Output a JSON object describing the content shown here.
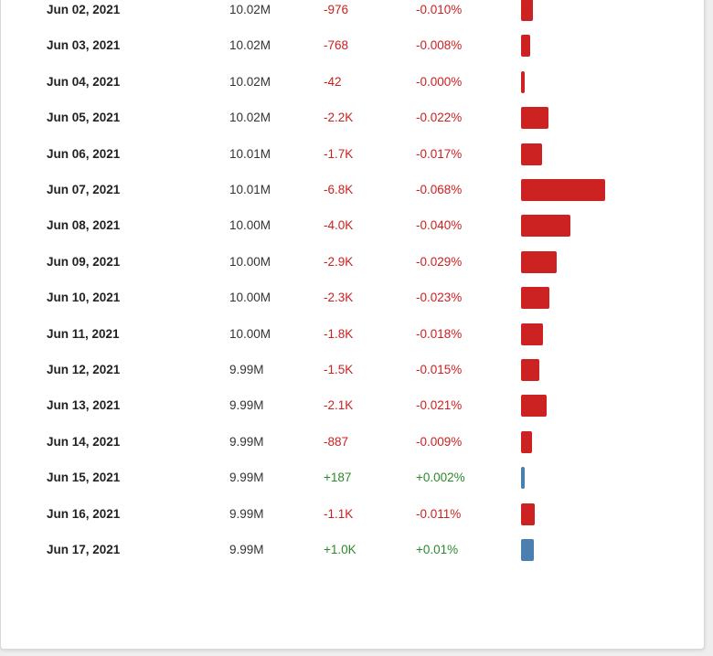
{
  "colors": {
    "negative": "#cc1f1f",
    "positive": "#2a8a2a",
    "bar_negative": "#cc2222",
    "bar_positive": "#4a7fb0"
  },
  "table": {
    "rows": [
      {
        "date": "Jun 02, 2021",
        "count": "10.02M",
        "delta": "-976",
        "pct": "-0.010%",
        "trend": "down",
        "change_value": -976
      },
      {
        "date": "Jun 03, 2021",
        "count": "10.02M",
        "delta": "-768",
        "pct": "-0.008%",
        "trend": "down",
        "change_value": -768
      },
      {
        "date": "Jun 04, 2021",
        "count": "10.02M",
        "delta": "-42",
        "pct": "-0.000%",
        "trend": "down",
        "change_value": -42
      },
      {
        "date": "Jun 05, 2021",
        "count": "10.02M",
        "delta": "-2.2K",
        "pct": "-0.022%",
        "trend": "down",
        "change_value": -2200
      },
      {
        "date": "Jun 06, 2021",
        "count": "10.01M",
        "delta": "-1.7K",
        "pct": "-0.017%",
        "trend": "down",
        "change_value": -1700
      },
      {
        "date": "Jun 07, 2021",
        "count": "10.01M",
        "delta": "-6.8K",
        "pct": "-0.068%",
        "trend": "down",
        "change_value": -6800
      },
      {
        "date": "Jun 08, 2021",
        "count": "10.00M",
        "delta": "-4.0K",
        "pct": "-0.040%",
        "trend": "down",
        "change_value": -4000
      },
      {
        "date": "Jun 09, 2021",
        "count": "10.00M",
        "delta": "-2.9K",
        "pct": "-0.029%",
        "trend": "down",
        "change_value": -2900
      },
      {
        "date": "Jun 10, 2021",
        "count": "10.00M",
        "delta": "-2.3K",
        "pct": "-0.023%",
        "trend": "down",
        "change_value": -2300
      },
      {
        "date": "Jun 11, 2021",
        "count": "10.00M",
        "delta": "-1.8K",
        "pct": "-0.018%",
        "trend": "down",
        "change_value": -1800
      },
      {
        "date": "Jun 12, 2021",
        "count": "9.99M",
        "delta": "-1.5K",
        "pct": "-0.015%",
        "trend": "down",
        "change_value": -1500
      },
      {
        "date": "Jun 13, 2021",
        "count": "9.99M",
        "delta": "-2.1K",
        "pct": "-0.021%",
        "trend": "down",
        "change_value": -2100
      },
      {
        "date": "Jun 14, 2021",
        "count": "9.99M",
        "delta": "-887",
        "pct": "-0.009%",
        "trend": "down",
        "change_value": -887
      },
      {
        "date": "Jun 15, 2021",
        "count": "9.99M",
        "delta": "+187",
        "pct": "+0.002%",
        "trend": "up",
        "change_value": 187
      },
      {
        "date": "Jun 16, 2021",
        "count": "9.99M",
        "delta": "-1.1K",
        "pct": "-0.011%",
        "trend": "down",
        "change_value": -1100
      },
      {
        "date": "Jun 17, 2021",
        "count": "9.99M",
        "delta": "+1.0K",
        "pct": "+0.01%",
        "trend": "up",
        "change_value": 1000
      }
    ]
  }
}
